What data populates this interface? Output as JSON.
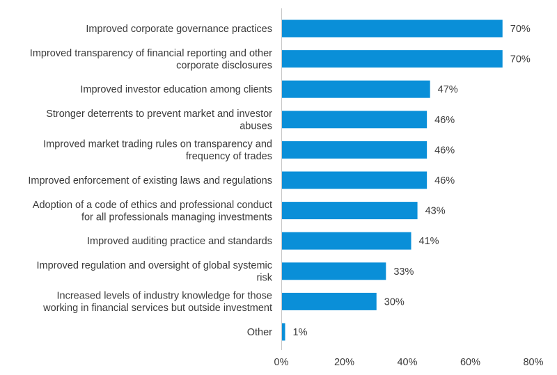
{
  "chart_data": {
    "type": "bar",
    "orientation": "horizontal",
    "title": "",
    "xlabel": "",
    "ylabel": "",
    "xlim": [
      0,
      80
    ],
    "xticks": [
      "0%",
      "20%",
      "40%",
      "60%",
      "80%"
    ],
    "grid": false,
    "bar_color": "#0a8fd8",
    "value_suffix": "%",
    "categories": [
      [
        "Improved corporate governance practices"
      ],
      [
        "Improved transparency of financial reporting and other",
        "corporate disclosures"
      ],
      [
        "Improved investor education among clients"
      ],
      [
        "Stronger deterrents to prevent market and investor",
        "abuses"
      ],
      [
        "Improved market trading rules on transparency and",
        "frequency of trades"
      ],
      [
        "Improved enforcement of existing laws and regulations"
      ],
      [
        "Adoption of a code of ethics and professional conduct",
        "for all professionals managing investments"
      ],
      [
        "Improved auditing practice and standards"
      ],
      [
        "Improved regulation and oversight of global systemic",
        "risk"
      ],
      [
        "Increased levels of industry knowledge for those",
        "working in financial services but outside investment"
      ],
      [
        "Other"
      ]
    ],
    "values": [
      70,
      70,
      47,
      46,
      46,
      46,
      43,
      41,
      33,
      30,
      1
    ]
  }
}
